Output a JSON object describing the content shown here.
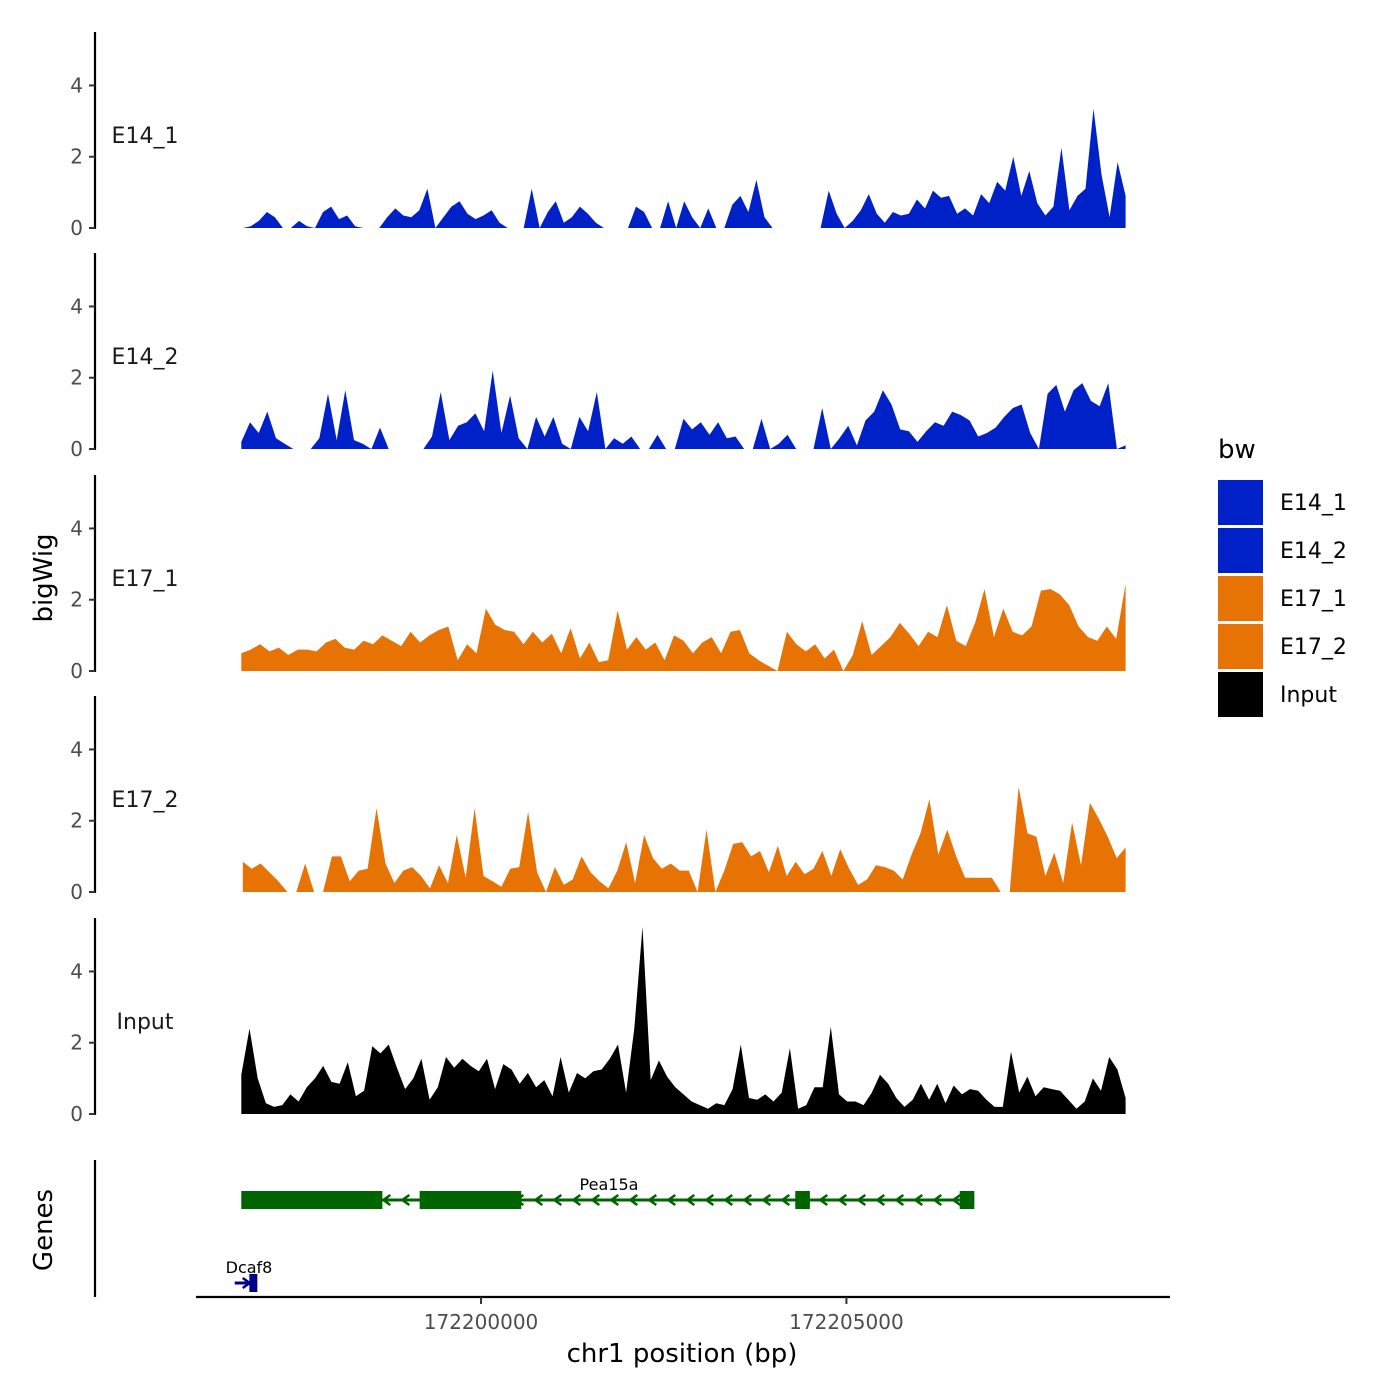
{
  "chart_data": {
    "type": "area",
    "xlabel": "chr1 position (bp)",
    "ylabel": "bigWig",
    "genes_label": "Genes",
    "xlim": [
      172196100,
      172209400
    ],
    "ylim": [
      0,
      5.5
    ],
    "x_ticks": [
      {
        "value": 172200000,
        "label": "172200000"
      },
      {
        "value": 172205000,
        "label": "172205000"
      }
    ],
    "y_ticks": [
      {
        "value": 0,
        "label": "0"
      },
      {
        "value": 2,
        "label": "2"
      },
      {
        "value": 4,
        "label": "4"
      }
    ],
    "legend": {
      "title": "bw",
      "items": [
        {
          "label": "E14_1",
          "color": "#0020C8"
        },
        {
          "label": "E14_2",
          "color": "#0020C8"
        },
        {
          "label": "E17_1",
          "color": "#E87305"
        },
        {
          "label": "E17_2",
          "color": "#E87305"
        },
        {
          "label": "Input",
          "color": "#000000"
        }
      ]
    },
    "series": [
      {
        "name": "E14_1",
        "color": "#0020C8",
        "x_start": 172196740,
        "x_end": 172208820,
        "values": [
          0,
          0.05,
          0.2,
          0.45,
          0.3,
          0,
          0,
          0.2,
          0.05,
          0,
          0.45,
          0.6,
          0.25,
          0.35,
          0.05,
          0,
          0,
          0,
          0.3,
          0.55,
          0.35,
          0.3,
          0.5,
          1.1,
          0,
          0.3,
          0.6,
          0.75,
          0.4,
          0.25,
          0.35,
          0.5,
          0.15,
          0,
          0,
          0,
          1.1,
          0,
          0.45,
          0.75,
          0.15,
          0.3,
          0.6,
          0.4,
          0.15,
          0,
          0,
          0,
          0,
          0.6,
          0.45,
          0,
          0,
          0.75,
          0,
          0.75,
          0.3,
          0,
          0.55,
          0,
          0,
          0.65,
          0.9,
          0.45,
          1.35,
          0.3,
          0,
          0,
          0,
          0,
          0,
          0,
          0,
          1.05,
          0.4,
          0,
          0.2,
          0.5,
          0.95,
          0.4,
          0.15,
          0.45,
          0.35,
          0.4,
          0.8,
          0.55,
          1.05,
          0.85,
          0.9,
          0.4,
          0.55,
          0.35,
          0.95,
          0.7,
          1.3,
          1.05,
          2,
          0.9,
          1.6,
          0.7,
          0.35,
          0.6,
          2.25,
          0.5,
          0.9,
          1.1,
          3.35,
          1.5,
          0.3,
          1.85,
          0.9
        ]
      },
      {
        "name": "E14_2",
        "color": "#0020C8",
        "x_start": 172196720,
        "x_end": 172208820,
        "values": [
          0.2,
          0.75,
          0.45,
          1.05,
          0.3,
          0.15,
          0,
          0,
          0,
          0.3,
          1.55,
          0.25,
          1.65,
          0.25,
          0.15,
          0,
          0.6,
          0,
          0,
          0,
          0,
          0,
          0.35,
          1.6,
          0.25,
          0.65,
          0.75,
          1,
          0.5,
          2.2,
          0.45,
          1.5,
          0.3,
          0,
          0.9,
          0.35,
          0.9,
          0.15,
          0,
          0.9,
          0.5,
          1.6,
          0,
          0.3,
          0.15,
          0.35,
          0,
          0,
          0.4,
          0,
          0,
          0.85,
          0.55,
          0.75,
          0.4,
          0.75,
          0.3,
          0.35,
          0,
          0,
          0.85,
          0,
          0.15,
          0.4,
          0,
          0,
          0,
          1.15,
          0,
          0.3,
          0.65,
          0.1,
          0.8,
          1.05,
          1.65,
          1.25,
          0.55,
          0.5,
          0.2,
          0.5,
          0.75,
          0.65,
          1.05,
          0.95,
          0.8,
          0.35,
          0.45,
          0.6,
          0.9,
          1.15,
          1.25,
          0.45,
          0,
          1.55,
          1.8,
          1.05,
          1.65,
          1.85,
          1.35,
          1.2,
          1.85,
          0,
          0.1
        ]
      },
      {
        "name": "E17_1",
        "color": "#E87305",
        "x_start": 172196720,
        "x_end": 172208820,
        "values": [
          0.5,
          0.6,
          0.75,
          0.55,
          0.65,
          0.45,
          0.6,
          0.6,
          0.55,
          0.8,
          0.9,
          0.65,
          0.6,
          0.85,
          0.75,
          1,
          0.85,
          0.7,
          1.1,
          0.8,
          1,
          1.15,
          1.25,
          0.3,
          0.75,
          0.5,
          1.75,
          1.3,
          1.15,
          1.1,
          0.75,
          1.1,
          0.8,
          1.05,
          0.5,
          1.2,
          0.35,
          0.8,
          0.25,
          0.3,
          1.7,
          0.6,
          0.95,
          0.6,
          0.8,
          0.3,
          1,
          0.85,
          0.5,
          0.8,
          0.95,
          0.5,
          1.1,
          1.15,
          0.5,
          0.3,
          0.15,
          0,
          1.1,
          0.75,
          0.55,
          0.75,
          0.35,
          0.6,
          0,
          0.45,
          1.4,
          0.45,
          0.7,
          0.95,
          1.35,
          1.05,
          0.7,
          1.1,
          0.95,
          1.85,
          0.85,
          0.7,
          1.35,
          2.3,
          0.95,
          1.75,
          1.1,
          1,
          1.25,
          2.25,
          2.3,
          2.15,
          1.85,
          1.25,
          0.95,
          0.85,
          1.25,
          0.9,
          2.45
        ]
      },
      {
        "name": "E17_2",
        "color": "#E87305",
        "x_start": 172196740,
        "x_end": 172208820,
        "values": [
          0.85,
          0.65,
          0.8,
          0.55,
          0.3,
          0,
          0,
          0.8,
          0,
          0,
          1,
          1,
          0.3,
          0.6,
          0.65,
          2.35,
          0.8,
          0.25,
          0.6,
          0.7,
          0.45,
          0.1,
          0.75,
          0.25,
          1.6,
          0.4,
          2.35,
          0.45,
          0.3,
          0.15,
          0.65,
          0.7,
          2.25,
          0.55,
          0,
          0.7,
          0.2,
          0.35,
          1,
          0.55,
          0.3,
          0.1,
          0.6,
          1.4,
          0.25,
          1.6,
          0.95,
          0.65,
          0.8,
          0.6,
          0.6,
          0,
          1.75,
          0,
          0.6,
          1.35,
          1.4,
          1,
          1.15,
          0.55,
          1.3,
          0.45,
          0.85,
          0.5,
          0.65,
          1.15,
          0.45,
          1.2,
          0.65,
          0.2,
          0.35,
          0.75,
          0.7,
          0.6,
          0.35,
          1.05,
          1.65,
          2.6,
          1.05,
          1.75,
          1,
          0.4,
          0.4,
          0.4,
          0.4,
          0,
          0,
          2.95,
          1.65,
          1.55,
          0.45,
          1.1,
          0.25,
          1.95,
          0.75,
          2.5,
          2.05,
          1.55,
          0.95,
          1.25
        ]
      },
      {
        "name": "Input",
        "color": "#000000",
        "x_start": 172196720,
        "x_end": 172208820,
        "values": [
          1.1,
          2.4,
          1,
          0.3,
          0.2,
          0.25,
          0.55,
          0.35,
          0.75,
          1,
          1.35,
          0.9,
          0.85,
          1.45,
          0.5,
          0.65,
          1.9,
          1.7,
          1.95,
          1.3,
          0.7,
          1,
          1.55,
          0.4,
          0.75,
          1.6,
          1.3,
          1.55,
          1.35,
          1.2,
          1.55,
          0.7,
          1.4,
          1.25,
          0.85,
          1.15,
          0.75,
          0.95,
          0.5,
          1.6,
          0.6,
          1.15,
          1,
          1.2,
          1.25,
          1.55,
          1.95,
          0.6,
          2.4,
          5.25,
          0.95,
          1.5,
          1.05,
          0.75,
          0.55,
          0.35,
          0.25,
          0.15,
          0.3,
          0.25,
          0.7,
          1.95,
          0.45,
          0.4,
          0.55,
          0.35,
          0.6,
          1.85,
          0.15,
          0.25,
          0.75,
          0.75,
          2.45,
          0.55,
          0.35,
          0.35,
          0.25,
          0.6,
          1.1,
          0.85,
          0.45,
          0.2,
          0.4,
          0.85,
          0.4,
          0.85,
          0.3,
          0.8,
          0.55,
          0.7,
          0.65,
          0.4,
          0.2,
          0.2,
          1.75,
          0.6,
          1.05,
          0.5,
          0.75,
          0.7,
          0.65,
          0.4,
          0.15,
          0.35,
          1,
          0.65,
          1.6,
          1.25,
          0.45
        ]
      }
    ],
    "genes": [
      {
        "name": "Pea15a",
        "label": "Pea15a",
        "strand": "-",
        "row": 1,
        "color": "#006400",
        "start": 172196720,
        "end": 172206750,
        "exons": [
          [
            172196720,
            172198650
          ],
          [
            172199160,
            172200550
          ],
          [
            172204300,
            172204500
          ],
          [
            172206550,
            172206750
          ]
        ]
      },
      {
        "name": "Dcaf8",
        "label": "Dcaf8",
        "strand": "+",
        "row": 2,
        "color": "#00008B",
        "start": 172196630,
        "end": 172196930,
        "exons": [
          [
            172196830,
            172196930
          ]
        ]
      }
    ]
  }
}
